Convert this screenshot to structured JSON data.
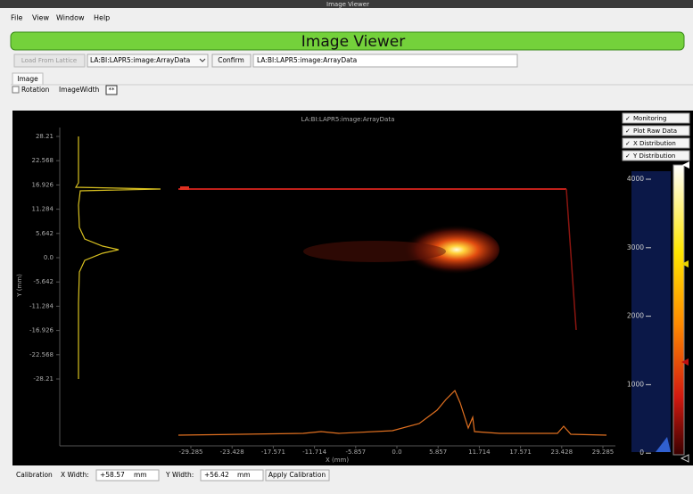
{
  "window": {
    "title": "Image Viewer"
  },
  "menu": [
    "File",
    "View",
    "Window",
    "Help"
  ],
  "header": {
    "title": "Image Viewer"
  },
  "toolbar": {
    "load_button": "Load From Lattice",
    "pv_combo": "LA:BI:LAPR5:image:ArrayData",
    "confirm_button": "Confirm",
    "pv_field": "LA:BI:LAPR5:image:ArrayData"
  },
  "tabs": [
    "Image"
  ],
  "options": {
    "rotation": "Rotation",
    "image_width": "ImageWidth",
    "image_width_value": "**"
  },
  "plot": {
    "title": "LA:BI:LAPR5:image:ArrayData",
    "x_label": "X (mm)",
    "y_label": "Y (mm)",
    "y_ticks": [
      "28.21",
      "22.568",
      "16.926",
      "11.284",
      "5.642",
      "0.0",
      "-5.642",
      "-11.284",
      "-16.926",
      "-22.568",
      "-28.21"
    ],
    "x_ticks": [
      "-29.285",
      "-23.428",
      "-17.571",
      "-11.714",
      "-5.857",
      "0.0",
      "5.857",
      "11.714",
      "17.571",
      "23.428",
      "29.285"
    ],
    "toggles": [
      "Monitoring",
      "Plot Raw Data",
      "X Distribution",
      "Y Distribution"
    ],
    "colorbar_ticks": [
      "4000",
      "3000",
      "2000",
      "1000",
      "0"
    ]
  },
  "calibration": {
    "label": "Calibration",
    "x_width_label": "X Width:",
    "x_width": "+58.57",
    "x_unit": "mm",
    "y_width_label": "Y Width:",
    "y_width": "+56.42",
    "y_unit": "mm",
    "apply_button": "Apply Calibration"
  }
}
